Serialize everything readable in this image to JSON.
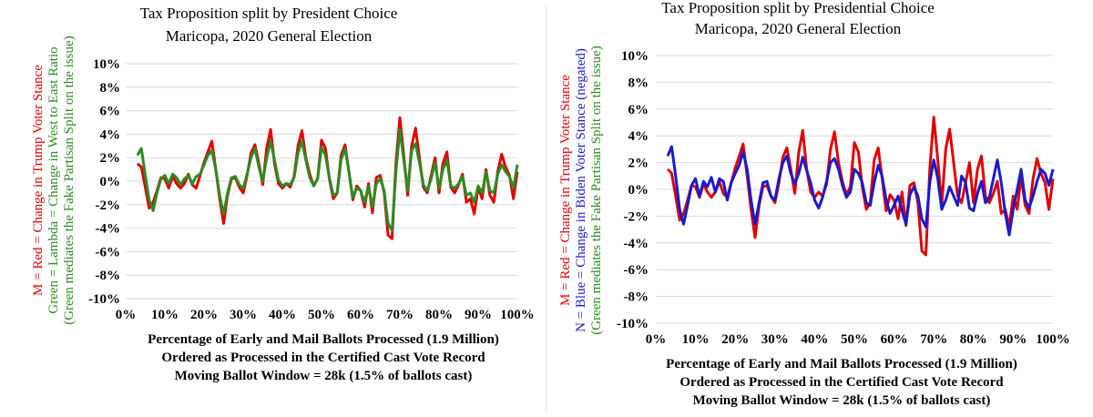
{
  "chart_data": [
    {
      "type": "line",
      "title": [
        "Tax Proposition split by President Choice",
        "Maricopa, 2020 General Election"
      ],
      "xlabel": [
        "Percentage of Early and Mail Ballots Processed (1.9 Million)",
        "Ordered as Processed in the Certified Cast Vote Record",
        "Moving Ballot Window = 28k (1.5% of ballots cast)"
      ],
      "ylabel": [
        {
          "text": "M = Red = Change in Trump Voter Stance",
          "color": "#e00000"
        },
        {
          "text": "Green = Lambda = Change in West to East Ratio",
          "color": "#2e8b23"
        },
        {
          "text": "(Green mediates the Fake Partisan Split on the issue)",
          "color": "#2e8b23"
        }
      ],
      "x_ticks": [
        "0%",
        "10%",
        "20%",
        "30%",
        "40%",
        "50%",
        "60%",
        "70%",
        "80%",
        "90%",
        "100%"
      ],
      "y_ticks": [
        "10%",
        "8%",
        "6%",
        "4%",
        "2%",
        "0%",
        "-2%",
        "-4%",
        "-6%",
        "-8%",
        "-10%"
      ],
      "xlim": [
        0,
        100
      ],
      "ylim": [
        -10,
        10
      ],
      "series": [
        {
          "name": "M = Red = Change in Trump Voter Stance",
          "color": "#e00000",
          "x": [
            3,
            4,
            5,
            6,
            7,
            8,
            9,
            10,
            11,
            12,
            13,
            14,
            15,
            16,
            17,
            18,
            19,
            20,
            21,
            22,
            23,
            24,
            25,
            26,
            27,
            28,
            29,
            30,
            31,
            32,
            33,
            34,
            35,
            36,
            37,
            38,
            39,
            40,
            41,
            42,
            43,
            44,
            45,
            46,
            47,
            48,
            49,
            50,
            51,
            52,
            53,
            54,
            55,
            56,
            57,
            58,
            59,
            60,
            61,
            62,
            63,
            64,
            65,
            66,
            67,
            68,
            69,
            70,
            71,
            72,
            73,
            74,
            75,
            76,
            77,
            78,
            79,
            80,
            81,
            82,
            83,
            84,
            85,
            86,
            87,
            88,
            89,
            90,
            91,
            92,
            93,
            94,
            95,
            96,
            97,
            98,
            99,
            100
          ],
          "y": [
            1.5,
            1.2,
            -0.5,
            -2.3,
            -1.8,
            -0.8,
            0.3,
            0.2,
            -0.6,
            0.4,
            -0.2,
            -0.6,
            -0.2,
            0.6,
            -0.3,
            -0.6,
            0.5,
            1.6,
            2.5,
            3.4,
            1.0,
            -1.5,
            -3.6,
            -1.2,
            0.2,
            0.3,
            -0.5,
            -1.0,
            0.5,
            2.4,
            3.1,
            1.5,
            -0.3,
            2.8,
            4.4,
            1.5,
            -0.2,
            -0.6,
            -0.2,
            -0.5,
            0.4,
            3.0,
            4.3,
            2.0,
            0.6,
            -0.4,
            0.2,
            3.5,
            2.8,
            0.2,
            -1.5,
            -1.0,
            2.2,
            3.1,
            0.8,
            -1.6,
            -0.4,
            -0.8,
            -2.2,
            -0.2,
            -2.7,
            0.3,
            0.5,
            -1.0,
            -4.6,
            -4.9,
            1.5,
            5.4,
            2.2,
            -1.2,
            3.0,
            4.5,
            2.0,
            -0.5,
            -1.0,
            0.5,
            2.0,
            -1.0,
            1.5,
            2.5,
            -0.5,
            -1.0,
            -0.3,
            0.6,
            -1.8,
            -1.5,
            -2.8,
            -0.5,
            -1.5,
            1.0,
            -1.2,
            -1.8,
            0.8,
            2.3,
            1.2,
            0.5,
            -1.5,
            0.8
          ]
        },
        {
          "name": "Green = Lambda = Change in West to East Ratio",
          "color": "#2e8b23",
          "x": [
            3,
            4,
            5,
            6,
            7,
            8,
            9,
            10,
            11,
            12,
            13,
            14,
            15,
            16,
            17,
            18,
            19,
            20,
            21,
            22,
            23,
            24,
            25,
            26,
            27,
            28,
            29,
            30,
            31,
            32,
            33,
            34,
            35,
            36,
            37,
            38,
            39,
            40,
            41,
            42,
            43,
            44,
            45,
            46,
            47,
            48,
            49,
            50,
            51,
            52,
            53,
            54,
            55,
            56,
            57,
            58,
            59,
            60,
            61,
            62,
            63,
            64,
            65,
            66,
            67,
            68,
            69,
            70,
            71,
            72,
            73,
            74,
            75,
            76,
            77,
            78,
            79,
            80,
            81,
            82,
            83,
            84,
            85,
            86,
            87,
            88,
            89,
            90,
            91,
            92,
            93,
            94,
            95,
            96,
            97,
            98,
            99,
            100
          ],
          "y": [
            2.2,
            2.8,
            0.5,
            -1.6,
            -2.5,
            -1.0,
            0.2,
            0.5,
            -0.2,
            0.6,
            0.3,
            -0.3,
            0.2,
            0.5,
            -0.2,
            0.4,
            0.6,
            1.4,
            2.2,
            2.6,
            1.0,
            -1.2,
            -2.8,
            -1.0,
            0.3,
            0.4,
            -0.3,
            -0.6,
            0.6,
            2.0,
            2.8,
            1.2,
            0.0,
            2.0,
            3.4,
            1.8,
            0.1,
            -0.4,
            -0.2,
            -0.3,
            0.3,
            2.4,
            3.4,
            1.8,
            0.3,
            -0.4,
            0.2,
            2.9,
            2.2,
            0.3,
            -1.2,
            -1.0,
            1.8,
            2.8,
            0.8,
            -1.4,
            -0.6,
            -0.8,
            -1.8,
            -0.4,
            -2.2,
            -0.2,
            0.2,
            -0.8,
            -3.6,
            -4.2,
            0.8,
            4.4,
            1.8,
            -0.8,
            2.6,
            3.2,
            1.6,
            -0.3,
            -0.8,
            0.2,
            1.6,
            -0.6,
            1.0,
            1.8,
            -0.4,
            -0.6,
            -0.2,
            0.4,
            -1.2,
            -1.0,
            -1.8,
            -0.4,
            -1.0,
            0.8,
            -0.8,
            -1.0,
            0.6,
            1.4,
            0.8,
            0.4,
            -0.6,
            1.4
          ]
        }
      ]
    },
    {
      "type": "line",
      "title": [
        "Tax Proposition split by Presidential Choice",
        "Maricopa, 2020 General Election"
      ],
      "xlabel": [
        "Percentage of Early and Mail Ballots Processed (1.9 Million)",
        "Ordered as Processed in the Certified Cast Vote Record",
        "Moving Ballot Window = 28k (1.5% of ballots cast)"
      ],
      "ylabel": [
        {
          "text": "M = Red = Change in Trump Voter Stance",
          "color": "#e00000"
        },
        {
          "text": "N = Blue = Change in Biden Voter Stance (negated)",
          "color": "#1a1acc"
        },
        {
          "text": "(Green mediates the Fake Partisan Split on the issue)",
          "color": "#2e8b23"
        }
      ],
      "x_ticks": [
        "0%",
        "10%",
        "20%",
        "30%",
        "40%",
        "50%",
        "60%",
        "70%",
        "80%",
        "90%",
        "100%"
      ],
      "y_ticks": [
        "10%",
        "8%",
        "6%",
        "4%",
        "2%",
        "0%",
        "-2%",
        "-4%",
        "-6%",
        "-8%",
        "-10%"
      ],
      "xlim": [
        0,
        100
      ],
      "ylim": [
        -10,
        10
      ],
      "series": [
        {
          "name": "M = Red = Change in Trump Voter Stance",
          "color": "#e00000",
          "x": [
            3,
            4,
            5,
            6,
            7,
            8,
            9,
            10,
            11,
            12,
            13,
            14,
            15,
            16,
            17,
            18,
            19,
            20,
            21,
            22,
            23,
            24,
            25,
            26,
            27,
            28,
            29,
            30,
            31,
            32,
            33,
            34,
            35,
            36,
            37,
            38,
            39,
            40,
            41,
            42,
            43,
            44,
            45,
            46,
            47,
            48,
            49,
            50,
            51,
            52,
            53,
            54,
            55,
            56,
            57,
            58,
            59,
            60,
            61,
            62,
            63,
            64,
            65,
            66,
            67,
            68,
            69,
            70,
            71,
            72,
            73,
            74,
            75,
            76,
            77,
            78,
            79,
            80,
            81,
            82,
            83,
            84,
            85,
            86,
            87,
            88,
            89,
            90,
            91,
            92,
            93,
            94,
            95,
            96,
            97,
            98,
            99,
            100
          ],
          "y": [
            1.5,
            1.2,
            -0.5,
            -2.3,
            -1.8,
            -0.8,
            0.3,
            0.2,
            -0.6,
            0.4,
            -0.2,
            -0.6,
            -0.2,
            0.6,
            -0.3,
            -0.6,
            0.5,
            1.6,
            2.5,
            3.4,
            1.0,
            -1.5,
            -3.6,
            -1.2,
            0.2,
            0.3,
            -0.5,
            -1.0,
            0.5,
            2.4,
            3.1,
            1.5,
            -0.3,
            2.8,
            4.4,
            1.5,
            -0.2,
            -0.6,
            -0.2,
            -0.5,
            0.4,
            3.0,
            4.3,
            2.0,
            0.6,
            -0.4,
            0.2,
            3.5,
            2.8,
            0.2,
            -1.5,
            -1.0,
            2.2,
            3.1,
            0.8,
            -1.6,
            -0.4,
            -0.8,
            -2.2,
            -0.2,
            -2.7,
            0.3,
            0.5,
            -1.0,
            -4.6,
            -4.9,
            1.5,
            5.4,
            2.2,
            -1.2,
            3.0,
            4.5,
            2.0,
            -0.5,
            -1.0,
            0.5,
            2.0,
            -1.0,
            1.5,
            2.5,
            -0.5,
            -1.0,
            -0.3,
            0.6,
            -1.8,
            -1.5,
            -2.8,
            -0.5,
            -1.5,
            1.0,
            -1.2,
            -1.8,
            0.8,
            2.3,
            1.2,
            0.5,
            -1.5,
            0.8
          ]
        },
        {
          "name": "N = Blue = Change in Biden Voter Stance (negated)",
          "color": "#1a1acc",
          "x": [
            3,
            4,
            5,
            6,
            7,
            8,
            9,
            10,
            11,
            12,
            13,
            14,
            15,
            16,
            17,
            18,
            19,
            20,
            21,
            22,
            23,
            24,
            25,
            26,
            27,
            28,
            29,
            30,
            31,
            32,
            33,
            34,
            35,
            36,
            37,
            38,
            39,
            40,
            41,
            42,
            43,
            44,
            45,
            46,
            47,
            48,
            49,
            50,
            51,
            52,
            53,
            54,
            55,
            56,
            57,
            58,
            59,
            60,
            61,
            62,
            63,
            64,
            65,
            66,
            67,
            68,
            69,
            70,
            71,
            72,
            73,
            74,
            75,
            76,
            77,
            78,
            79,
            80,
            81,
            82,
            83,
            84,
            85,
            86,
            87,
            88,
            89,
            90,
            91,
            92,
            93,
            94,
            95,
            96,
            97,
            98,
            99,
            100
          ],
          "y": [
            2.5,
            3.2,
            1.0,
            -1.5,
            -2.6,
            -1.2,
            0.3,
            0.8,
            -0.5,
            0.6,
            0.2,
            0.9,
            -0.2,
            0.8,
            0.6,
            -0.8,
            0.5,
            1.2,
            1.8,
            2.8,
            1.5,
            -0.8,
            -2.6,
            -1.0,
            0.5,
            0.6,
            -0.5,
            -0.8,
            0.8,
            2.0,
            2.5,
            1.2,
            0.4,
            1.2,
            2.4,
            1.4,
            0.5,
            -0.8,
            -1.4,
            -0.6,
            0.6,
            2.0,
            2.3,
            1.5,
            0.3,
            -0.6,
            -0.2,
            1.5,
            1.2,
            0.5,
            -1.0,
            -1.2,
            0.5,
            1.8,
            1.0,
            -0.8,
            -1.8,
            -1.2,
            -0.5,
            -1.6,
            -2.6,
            -0.4,
            0.2,
            -0.5,
            -2.2,
            -2.8,
            0.5,
            2.2,
            0.8,
            -1.5,
            -0.8,
            0.2,
            -0.5,
            -1.2,
            1.0,
            0.5,
            -1.4,
            -1.6,
            -0.3,
            0.6,
            -1.0,
            -0.6,
            0.8,
            2.2,
            0.5,
            -1.8,
            -3.4,
            -1.5,
            0.0,
            1.5,
            -0.8,
            -1.4,
            -0.5,
            0.6,
            1.5,
            1.2,
            0.3,
            1.5
          ]
        }
      ]
    }
  ]
}
